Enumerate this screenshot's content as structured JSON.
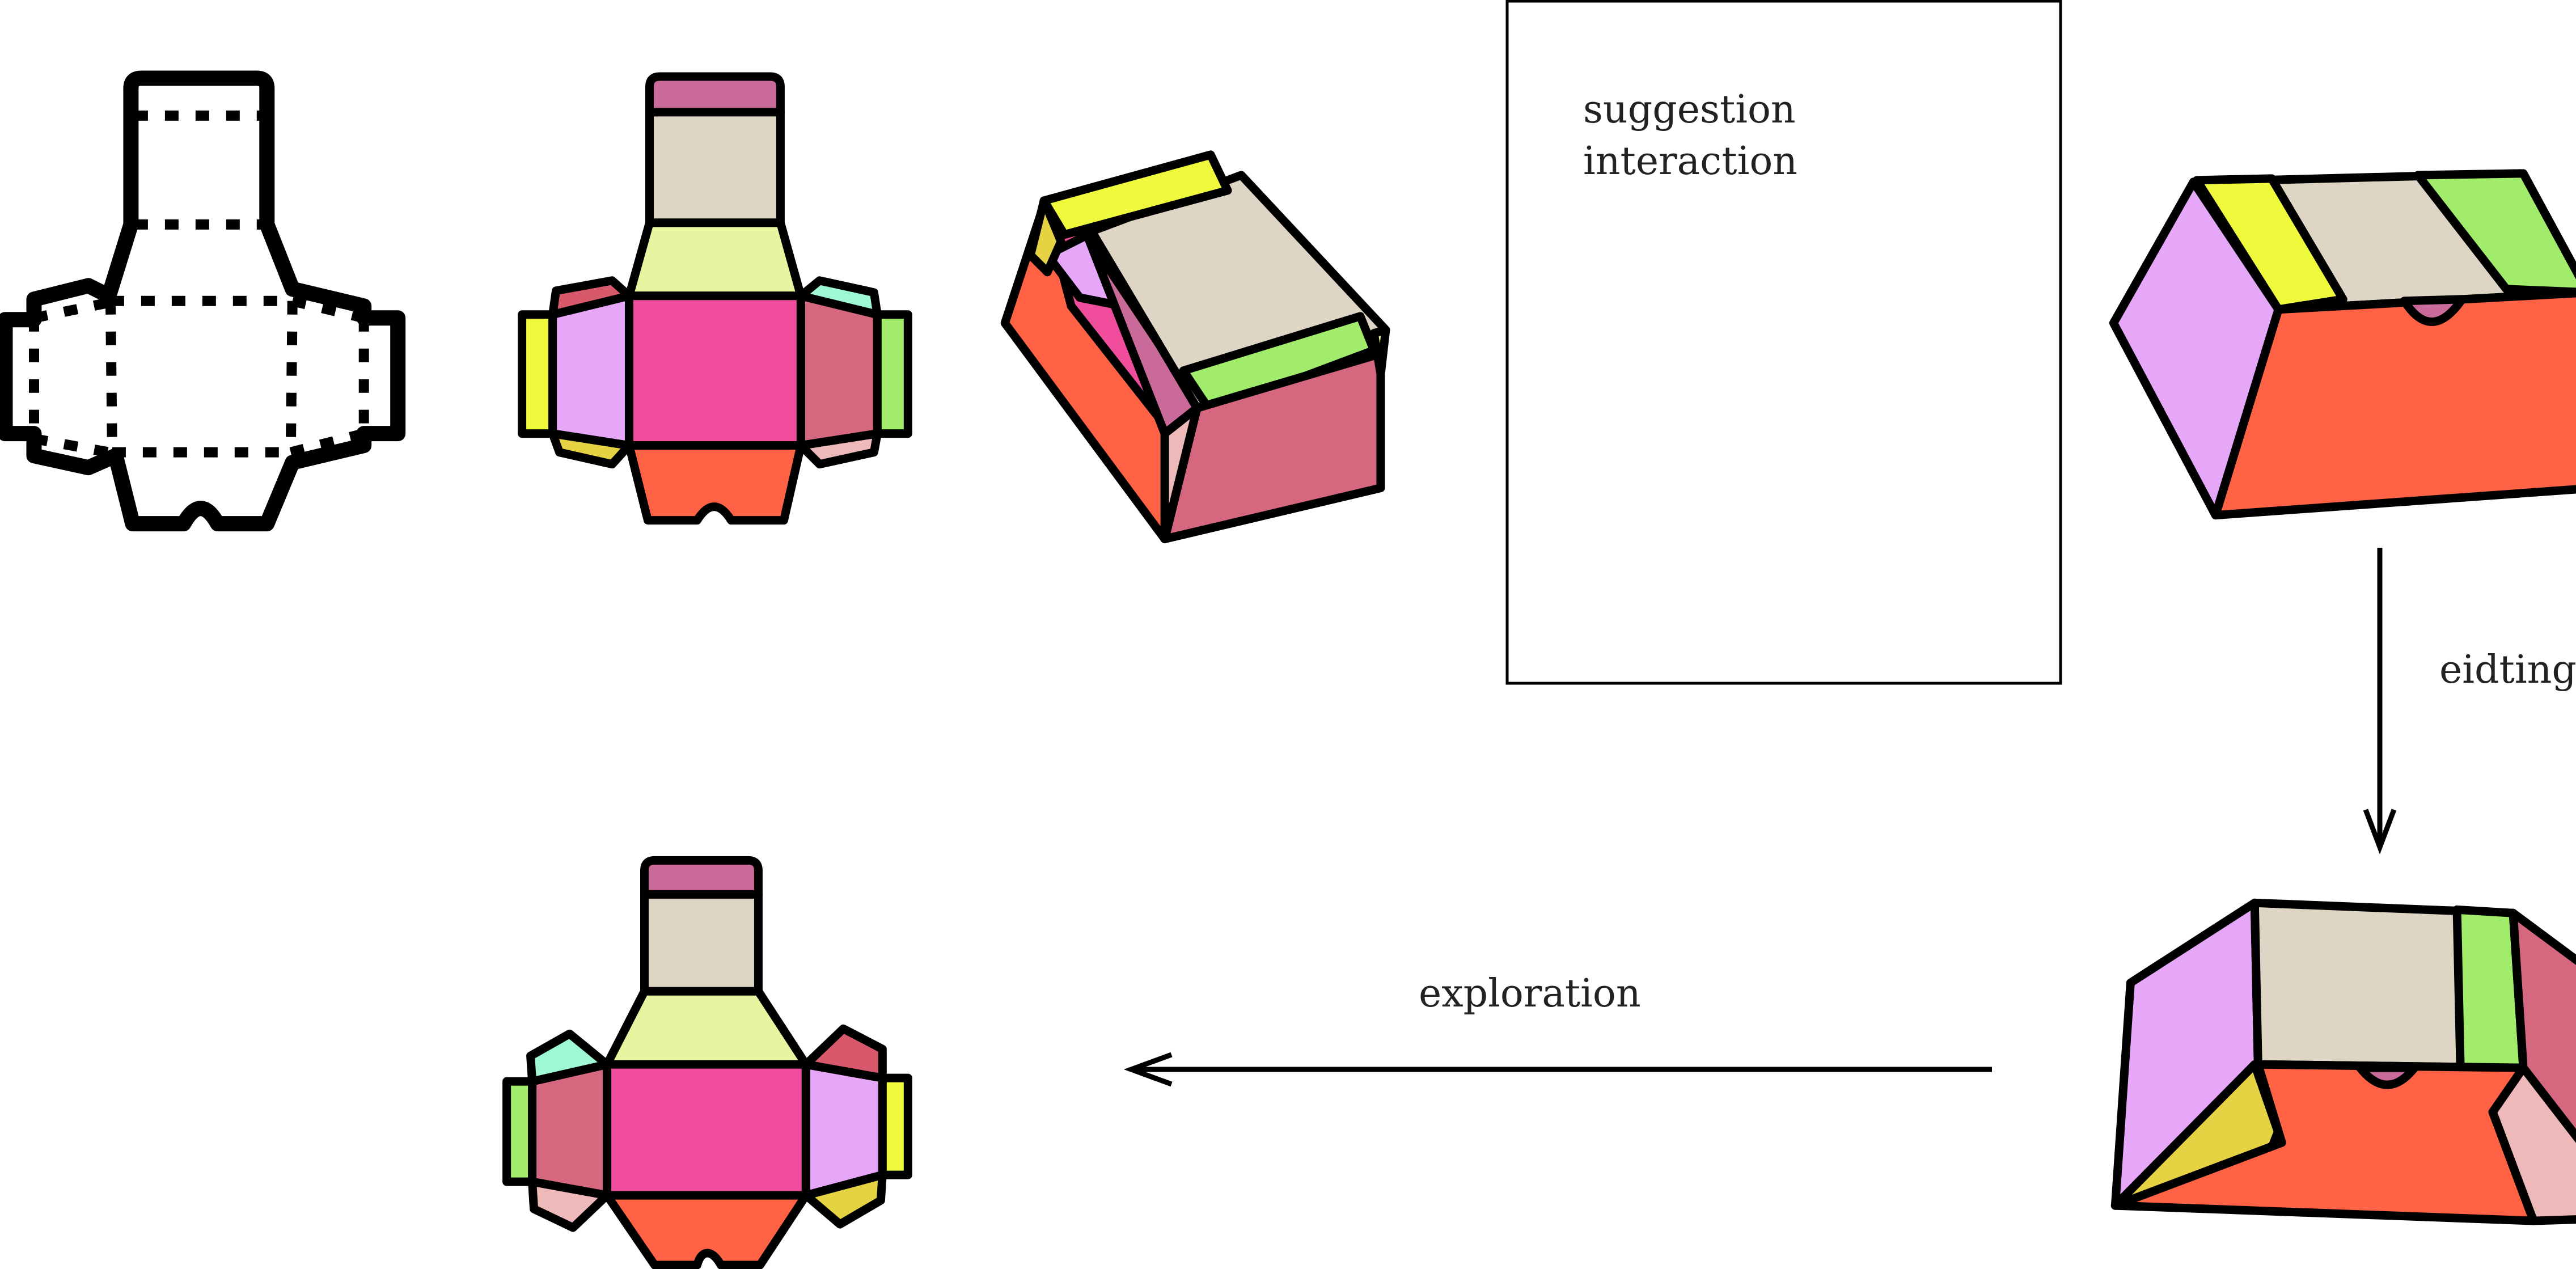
{
  "labels": {
    "suggestion": "suggestion",
    "interaction": "interaction",
    "editing": "eidting",
    "exploration": "exploration"
  },
  "colors": {
    "top_tab": "#c96a9b",
    "top_panel": "#dfd5c5",
    "top_trapezoid": "#e8f5a0",
    "center": "#f04d9c",
    "bottom": "#ff6244",
    "left_panel": "#e7a7f8",
    "left_tab": "#f0fa3c",
    "left_upper_flap": "#d9596c",
    "left_lower_flap": "#e5d343",
    "right_panel": "#d5687f",
    "right_tab": "#a2ec6c",
    "right_upper_flap": "#9ff8d4",
    "right_lower_flap": "#eeb9b9"
  },
  "icons": [
    "arrow-down-icon",
    "arrow-left-icon"
  ]
}
